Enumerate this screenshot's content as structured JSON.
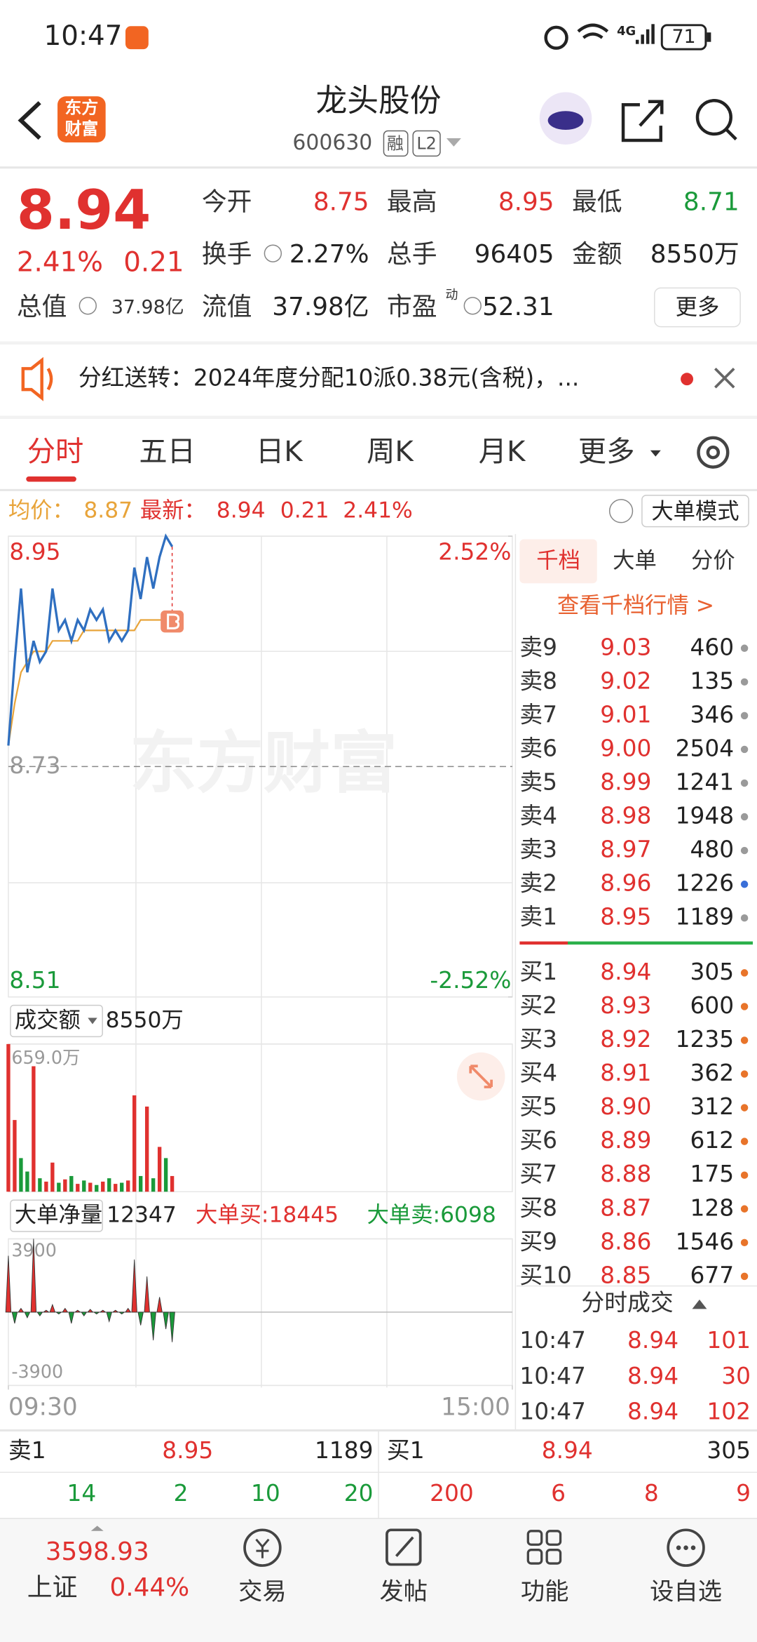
{
  "status_bar": {
    "time": "10:47",
    "network": "4G",
    "battery": "71"
  },
  "header": {
    "logo": [
      "东方",
      "财富"
    ],
    "title": "龙头股份",
    "code": "600630",
    "tags": [
      "融",
      "L2"
    ]
  },
  "quote": {
    "price": "8.94",
    "change_pct": "2.41%",
    "change": "0.21",
    "fields": [
      {
        "label": "今开",
        "value": "8.75",
        "color": "#e0312f"
      },
      {
        "label": "最高",
        "value": "8.95",
        "color": "#e0312f"
      },
      {
        "label": "最低",
        "value": "8.71",
        "color": "#1a9a3a"
      },
      {
        "label": "换手",
        "value": "2.27%",
        "color": "#222222"
      },
      {
        "label": "总手",
        "value": "96405",
        "color": "#222222"
      },
      {
        "label": "金额",
        "value": "8550万",
        "color": "#222222"
      },
      {
        "label": "流值",
        "value": "37.98亿",
        "color": "#222222"
      },
      {
        "label": "市盈",
        "value": "52.31",
        "color": "#222222",
        "sup": "动"
      }
    ],
    "market_cap": {
      "label": "总值",
      "value": "37.98亿"
    },
    "more": "更多"
  },
  "notice": "分红送转：2024年度分配10派0.38元(含税)，...",
  "tabs": [
    "分时",
    "五日",
    "日K",
    "周K",
    "月K",
    "更多"
  ],
  "info_line": {
    "avg_label": "均价：",
    "avg": "8.87",
    "latest_label": "最新：",
    "latest": "8.94",
    "change": "0.21",
    "pct": "2.41%",
    "mode": "大单模式"
  },
  "watermark": "东方财富",
  "chart_data": [
    {
      "type": "line",
      "x": [
        0,
        3,
        6,
        9,
        12,
        15,
        18,
        21,
        24,
        27,
        30,
        33,
        36,
        39,
        42,
        45,
        48,
        51,
        54,
        57,
        60,
        63,
        66,
        69,
        72,
        75,
        78
      ],
      "xlim": [
        0,
        240
      ],
      "xticks": [
        {
          "value": 0,
          "label": "09:30"
        },
        {
          "value": 240,
          "label": "15:00"
        }
      ],
      "ylim": [
        8.51,
        8.95
      ],
      "yticks": [
        8.95,
        8.73,
        8.51
      ],
      "y2lim": [
        -2.52,
        2.52
      ],
      "y2ticks": [
        {
          "value": 2.52,
          "label": "2.52%"
        },
        {
          "value": -2.52,
          "label": "-2.52%"
        }
      ],
      "series": [
        {
          "color": "#2f6fc0",
          "values": [
            8.75,
            8.83,
            8.9,
            8.82,
            8.85,
            8.83,
            8.84,
            8.9,
            8.86,
            8.87,
            8.85,
            8.87,
            8.86,
            8.88,
            8.87,
            8.88,
            8.85,
            8.86,
            8.85,
            8.86,
            8.92,
            8.89,
            8.93,
            8.9,
            8.93,
            8.95,
            8.94
          ]
        },
        {
          "color": "#e8a43a",
          "values": [
            8.75,
            8.79,
            8.82,
            8.83,
            8.84,
            8.84,
            8.84,
            8.85,
            8.85,
            8.85,
            8.85,
            8.85,
            8.86,
            8.86,
            8.86,
            8.86,
            8.86,
            8.86,
            8.86,
            8.86,
            8.86,
            8.87,
            8.87,
            8.87,
            8.87,
            8.87,
            8.87
          ]
        }
      ]
    },
    {
      "type": "bar",
      "label": "成交额",
      "total": "8550万",
      "ylim": [
        0,
        659
      ],
      "yticks": [
        {
          "value": 659,
          "label": "659.0万"
        }
      ],
      "values": [
        659,
        320,
        150,
        90,
        560,
        60,
        45,
        130,
        40,
        55,
        70,
        35,
        50,
        40,
        30,
        45,
        60,
        35,
        40,
        50,
        430,
        70,
        380,
        60,
        200,
        150,
        70
      ],
      "colors": [
        "#e0312f",
        "#e0312f",
        "#1a9a3a",
        "#1a9a3a",
        "#e0312f",
        "#1a9a3a",
        "#e0312f",
        "#e0312f",
        "#1a9a3a",
        "#e0312f",
        "#1a9a3a",
        "#e0312f",
        "#1a9a3a",
        "#e0312f",
        "#1a9a3a",
        "#e0312f",
        "#1a9a3a",
        "#e0312f",
        "#1a9a3a",
        "#e0312f",
        "#e0312f",
        "#1a9a3a",
        "#e0312f",
        "#1a9a3a",
        "#e0312f",
        "#1a9a3a",
        "#e0312f"
      ]
    },
    {
      "type": "bar",
      "label": "大单净量",
      "total": "12347",
      "buy": "大单买:18445",
      "sell": "大单卖:6098",
      "ylim": [
        -3900,
        3900
      ],
      "yticks": [
        3900,
        -3900
      ],
      "up_color": "#e0312f",
      "down_color": "#1a9a3a",
      "values": [
        3000,
        -600,
        200,
        -300,
        3900,
        -200,
        100,
        400,
        -100,
        200,
        -600,
        100,
        -200,
        150,
        -100,
        100,
        -500,
        100,
        -100,
        200,
        2800,
        -700,
        1900,
        -1500,
        800,
        -900,
        -1600
      ]
    }
  ],
  "depth": {
    "tabs": [
      "千档",
      "大单",
      "分价"
    ],
    "link": "查看千档行情 >",
    "sell": [
      {
        "label": "卖9",
        "price": "9.03",
        "volume": "460",
        "dot": "#9a9a9a"
      },
      {
        "label": "卖8",
        "price": "9.02",
        "volume": "135",
        "dot": "#9a9a9a"
      },
      {
        "label": "卖7",
        "price": "9.01",
        "volume": "346",
        "dot": "#9a9a9a"
      },
      {
        "label": "卖6",
        "price": "9.00",
        "volume": "2504",
        "dot": "#9a9a9a"
      },
      {
        "label": "卖5",
        "price": "8.99",
        "volume": "1241",
        "dot": "#9a9a9a"
      },
      {
        "label": "卖4",
        "price": "8.98",
        "volume": "1948",
        "dot": "#9a9a9a"
      },
      {
        "label": "卖3",
        "price": "8.97",
        "volume": "480",
        "dot": "#9a9a9a"
      },
      {
        "label": "卖2",
        "price": "8.96",
        "volume": "1226",
        "dot": "#3a6fd8"
      },
      {
        "label": "卖1",
        "price": "8.95",
        "volume": "1189",
        "dot": "#9a9a9a"
      }
    ],
    "buy": [
      {
        "label": "买1",
        "price": "8.94",
        "volume": "305",
        "dot": "#e8742a"
      },
      {
        "label": "买2",
        "price": "8.93",
        "volume": "600",
        "dot": "#e8742a"
      },
      {
        "label": "买3",
        "price": "8.92",
        "volume": "1235",
        "dot": "#e8742a"
      },
      {
        "label": "买4",
        "price": "8.91",
        "volume": "362",
        "dot": "#e8742a"
      },
      {
        "label": "买5",
        "price": "8.90",
        "volume": "312",
        "dot": "#e8742a"
      },
      {
        "label": "买6",
        "price": "8.89",
        "volume": "612",
        "dot": "#e8742a"
      },
      {
        "label": "买7",
        "price": "8.88",
        "volume": "175",
        "dot": "#e8742a"
      },
      {
        "label": "买8",
        "price": "8.87",
        "volume": "128",
        "dot": "#e8742a"
      },
      {
        "label": "买9",
        "price": "8.86",
        "volume": "1546",
        "dot": "#e8742a"
      },
      {
        "label": "买10",
        "price": "8.85",
        "volume": "677",
        "dot": "#e8742a"
      }
    ],
    "trades_title": "分时成交",
    "trades": [
      {
        "time": "10:47",
        "price": "8.94",
        "volume": "101"
      },
      {
        "time": "10:47",
        "price": "8.94",
        "volume": "30"
      },
      {
        "time": "10:47",
        "price": "8.94",
        "volume": "102"
      }
    ]
  },
  "bottom_quote": {
    "sell": {
      "label": "卖1",
      "price": "8.95",
      "volume": "1189",
      "counts": [
        "14",
        "2",
        "10",
        "20"
      ]
    },
    "buy": {
      "label": "买1",
      "price": "8.94",
      "volume": "305",
      "counts": [
        "200",
        "6",
        "8",
        "9"
      ]
    }
  },
  "nav": {
    "index": {
      "value": "3598.93",
      "name": "上证",
      "pct": "0.44%"
    },
    "items": [
      "交易",
      "发帖",
      "功能",
      "设自选"
    ]
  }
}
